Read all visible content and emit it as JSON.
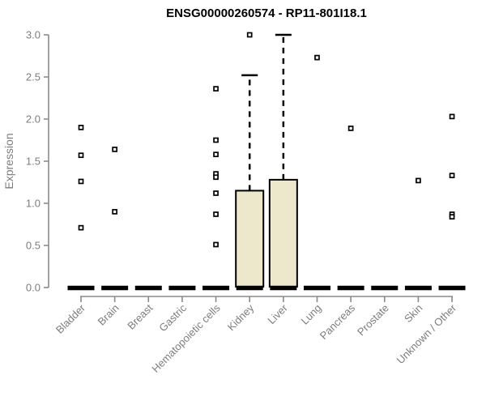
{
  "chart_data": {
    "type": "boxplot",
    "title": "ENSG00000260574 - RP11-801I18.1",
    "ylabel": "Expression",
    "xlabel": "",
    "ylim": [
      0.0,
      3.0
    ],
    "yticks": [
      "0.0",
      "0.5",
      "1.0",
      "1.5",
      "2.0",
      "2.5",
      "3.0"
    ],
    "ytick_values": [
      0.0,
      0.5,
      1.0,
      1.5,
      2.0,
      2.5,
      3.0
    ],
    "grid": false,
    "legend": "none",
    "categories": [
      "Bladder",
      "Brain",
      "Breast",
      "Gastric",
      "Hematopoietic cells",
      "Kidney",
      "Liver",
      "Lung",
      "Pancreas",
      "Prostate",
      "Skin",
      "Unknown / Other"
    ],
    "series": [
      {
        "name": "Bladder",
        "median": 0.0,
        "q1": 0.0,
        "q3": 0.0,
        "whisker_low": 0.0,
        "whisker_high": 0.0,
        "outliers": [
          1.9,
          1.57,
          1.26,
          0.71
        ]
      },
      {
        "name": "Brain",
        "median": 0.0,
        "q1": 0.0,
        "q3": 0.0,
        "whisker_low": 0.0,
        "whisker_high": 0.0,
        "outliers": [
          1.64,
          0.9
        ]
      },
      {
        "name": "Breast",
        "median": 0.0,
        "q1": 0.0,
        "q3": 0.0,
        "whisker_low": 0.0,
        "whisker_high": 0.0,
        "outliers": []
      },
      {
        "name": "Gastric",
        "median": 0.0,
        "q1": 0.0,
        "q3": 0.0,
        "whisker_low": 0.0,
        "whisker_high": 0.0,
        "outliers": []
      },
      {
        "name": "Hematopoietic cells",
        "median": 0.0,
        "q1": 0.0,
        "q3": 0.0,
        "whisker_low": 0.0,
        "whisker_high": 0.0,
        "outliers": [
          2.36,
          1.75,
          1.58,
          1.35,
          1.31,
          1.12,
          0.87,
          0.51
        ]
      },
      {
        "name": "Kidney",
        "median": 0.0,
        "q1": 0.0,
        "q3": 1.15,
        "whisker_low": 0.0,
        "whisker_high": 2.52,
        "outliers": [
          3.0
        ]
      },
      {
        "name": "Liver",
        "median": 0.0,
        "q1": 0.0,
        "q3": 1.28,
        "whisker_low": 0.0,
        "whisker_high": 3.0,
        "outliers": []
      },
      {
        "name": "Lung",
        "median": 0.0,
        "q1": 0.0,
        "q3": 0.0,
        "whisker_low": 0.0,
        "whisker_high": 0.0,
        "outliers": [
          2.73
        ]
      },
      {
        "name": "Pancreas",
        "median": 0.0,
        "q1": 0.0,
        "q3": 0.0,
        "whisker_low": 0.0,
        "whisker_high": 0.0,
        "outliers": [
          1.89
        ]
      },
      {
        "name": "Prostate",
        "median": 0.0,
        "q1": 0.0,
        "q3": 0.0,
        "whisker_low": 0.0,
        "whisker_high": 0.0,
        "outliers": []
      },
      {
        "name": "Skin",
        "median": 0.0,
        "q1": 0.0,
        "q3": 0.0,
        "whisker_low": 0.0,
        "whisker_high": 0.0,
        "outliers": [
          1.27
        ]
      },
      {
        "name": "Unknown / Other",
        "median": 0.0,
        "q1": 0.0,
        "q3": 0.0,
        "whisker_low": 0.0,
        "whisker_high": 0.0,
        "outliers": [
          2.03,
          1.33,
          0.87,
          0.84
        ]
      }
    ],
    "colors": {
      "box_fill": "#EDE8CC",
      "box_border": "#000000",
      "median_bar": "#000000",
      "whisker": "#000000",
      "outlier_border": "#000000",
      "outlier_fill": "#ffffff",
      "axis_line": "#8a8a8a",
      "tick_label": "#7d7d7d",
      "title": "#000000",
      "background": "#ffffff"
    }
  }
}
